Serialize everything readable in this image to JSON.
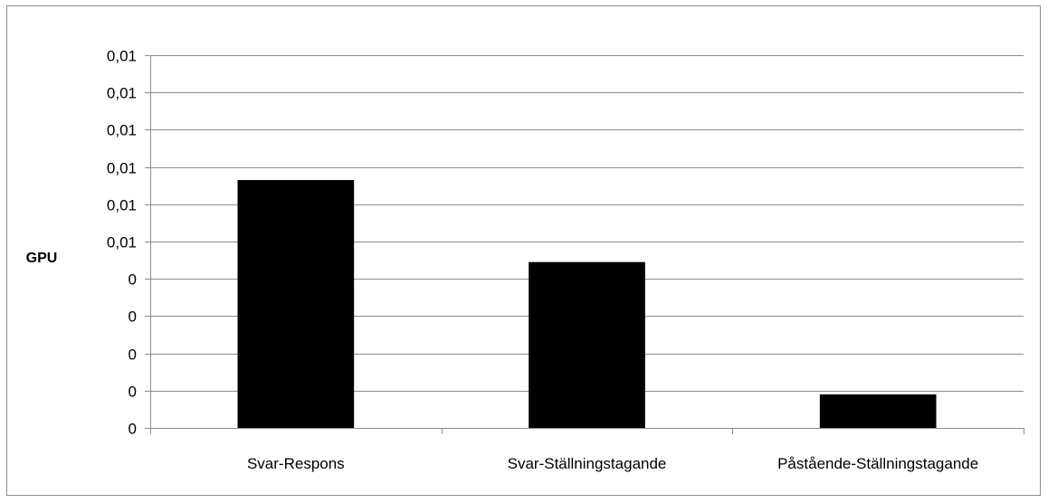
{
  "chart_data": {
    "type": "bar",
    "title": "",
    "xlabel": "",
    "ylabel": "GPU",
    "categories": [
      "Svar-Respons",
      "Svar-Ställningstagande",
      "Påstående-Ställningstagande"
    ],
    "series": [
      {
        "values": [
          0.00665,
          0.00445,
          0.0009
        ],
        "color": "#000000"
      }
    ],
    "ylim": [
      0,
      0.01
    ],
    "y_tick_values": [
      0,
      0.001,
      0.002,
      0.003,
      0.004,
      0.005,
      0.006,
      0.007,
      0.008,
      0.009,
      0.01
    ],
    "y_tick_labels": [
      "0",
      "0",
      "0",
      "0",
      "0",
      "0,01",
      "0,01",
      "0,01",
      "0,01",
      "0,01",
      "0,01"
    ],
    "grid": true,
    "gridline_color": "#8c8c8c",
    "legend": "none"
  }
}
